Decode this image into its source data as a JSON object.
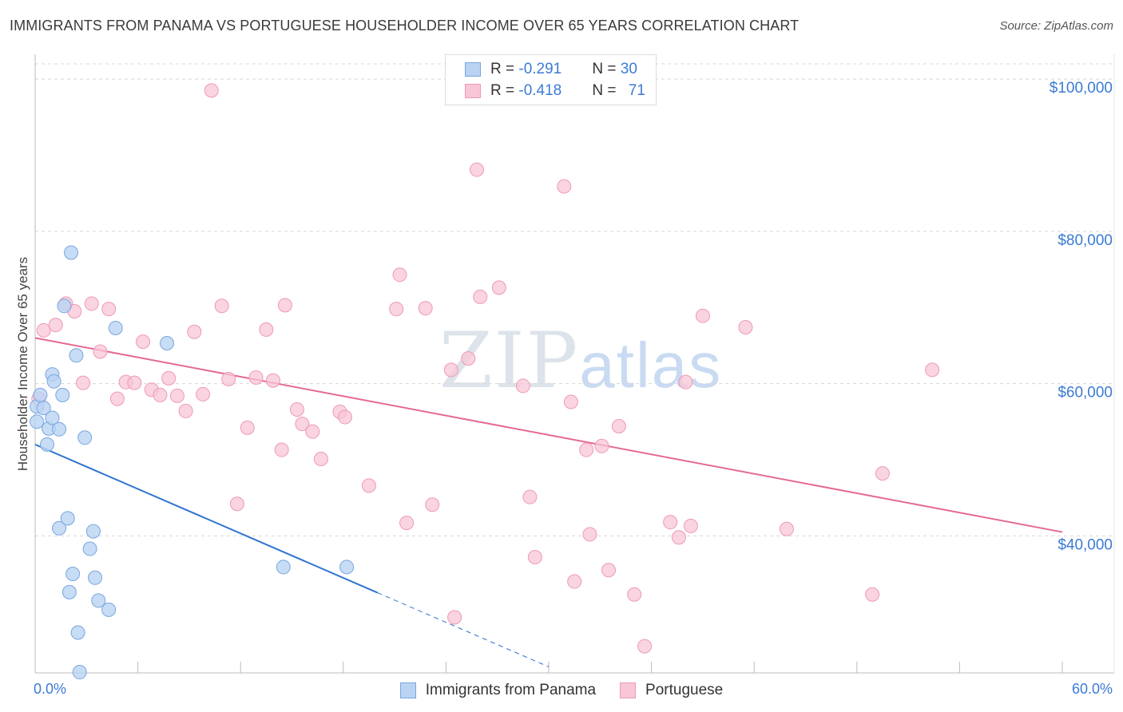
{
  "title": "IMMIGRANTS FROM PANAMA VS PORTUGUESE HOUSEHOLDER INCOME OVER 65 YEARS CORRELATION CHART",
  "source": "Source: ZipAtlas.com",
  "watermark": {
    "zip": "ZIP",
    "atlas": "atlas"
  },
  "colors": {
    "panama_fill": "#b9d3f3",
    "panama_stroke": "#7aa6df",
    "panama_line": "#2e74d0",
    "portuguese_fill": "#f8c6d6",
    "portuguese_stroke": "#ee9ab5",
    "portuguese_line": "#e46a94",
    "accent_text": "#3b7bd4"
  },
  "legend": {
    "rows": [
      {
        "r_label": "R = ",
        "r_value": "-0.291",
        "n_label": "N = ",
        "n_value": "30"
      },
      {
        "r_label": "R = ",
        "r_value": "-0.418",
        "n_label": "N = ",
        "n_value": "71"
      }
    ]
  },
  "bottom_legend": [
    "Immigrants from Panama",
    "Portuguese"
  ],
  "chart_data": {
    "type": "scatter",
    "title": "IMMIGRANTS FROM PANAMA VS PORTUGUESE HOUSEHOLDER INCOME OVER 65 YEARS CORRELATION CHART",
    "ylabel": "Householder Income Over 65 years",
    "xlabel": "",
    "xlim": [
      0,
      60
    ],
    "ylim": [
      22000,
      102000
    ],
    "x_tick_labels": [
      "0.0%",
      "60.0%"
    ],
    "y_ticks": [
      40000,
      60000,
      80000,
      100000
    ],
    "y_tick_labels": [
      "$40,000",
      "$60,000",
      "$80,000",
      "$100,000"
    ],
    "grid": true,
    "legend_position": "top-center",
    "series": [
      {
        "name": "Immigrants from Panama",
        "r": -0.291,
        "n": 30,
        "trend": {
          "x0": 0,
          "y0": 52000,
          "x1": 30,
          "y1": 22800,
          "solid_until_x": 20
        },
        "points": [
          [
            0.1,
            57000
          ],
          [
            0.1,
            55000
          ],
          [
            0.3,
            58500
          ],
          [
            0.5,
            56800
          ],
          [
            0.7,
            52000
          ],
          [
            0.8,
            54100
          ],
          [
            1.0,
            61200
          ],
          [
            1.0,
            55500
          ],
          [
            1.1,
            60300
          ],
          [
            1.4,
            54000
          ],
          [
            1.4,
            41000
          ],
          [
            1.6,
            58500
          ],
          [
            1.7,
            70200
          ],
          [
            1.9,
            42300
          ],
          [
            2.1,
            77200
          ],
          [
            2.2,
            35000
          ],
          [
            2.0,
            32600
          ],
          [
            2.4,
            63700
          ],
          [
            2.5,
            27300
          ],
          [
            2.6,
            22100
          ],
          [
            2.9,
            52900
          ],
          [
            3.2,
            38300
          ],
          [
            3.4,
            40600
          ],
          [
            3.5,
            34500
          ],
          [
            3.7,
            31500
          ],
          [
            4.3,
            30300
          ],
          [
            4.7,
            67300
          ],
          [
            7.7,
            65300
          ],
          [
            14.5,
            35900
          ],
          [
            18.2,
            35900
          ]
        ]
      },
      {
        "name": "Portuguese",
        "r": -0.418,
        "n": 71,
        "trend": {
          "x0": 0,
          "y0": 66000,
          "x1": 60,
          "y1": 40500
        },
        "points": [
          [
            0.2,
            58000
          ],
          [
            0.5,
            67000
          ],
          [
            1.2,
            67700
          ],
          [
            1.8,
            70500
          ],
          [
            2.3,
            69500
          ],
          [
            2.8,
            60100
          ],
          [
            3.3,
            70500
          ],
          [
            3.8,
            64200
          ],
          [
            4.3,
            69800
          ],
          [
            4.8,
            58000
          ],
          [
            5.3,
            60200
          ],
          [
            5.8,
            60100
          ],
          [
            6.3,
            65500
          ],
          [
            6.8,
            59200
          ],
          [
            7.3,
            58500
          ],
          [
            7.8,
            60700
          ],
          [
            8.3,
            58400
          ],
          [
            8.8,
            56400
          ],
          [
            9.3,
            66800
          ],
          [
            9.8,
            58600
          ],
          [
            10.3,
            98500
          ],
          [
            10.9,
            70200
          ],
          [
            11.3,
            60600
          ],
          [
            11.8,
            44200
          ],
          [
            12.4,
            54200
          ],
          [
            12.9,
            60800
          ],
          [
            13.5,
            67100
          ],
          [
            13.9,
            60400
          ],
          [
            14.4,
            51300
          ],
          [
            14.6,
            70300
          ],
          [
            15.3,
            56600
          ],
          [
            15.6,
            54700
          ],
          [
            16.2,
            53700
          ],
          [
            16.7,
            50100
          ],
          [
            17.8,
            56300
          ],
          [
            18.1,
            55600
          ],
          [
            19.5,
            46600
          ],
          [
            21.1,
            69800
          ],
          [
            21.3,
            74300
          ],
          [
            21.7,
            41700
          ],
          [
            22.8,
            69900
          ],
          [
            23.2,
            44100
          ],
          [
            24.3,
            61800
          ],
          [
            24.5,
            29300
          ],
          [
            25.3,
            63300
          ],
          [
            25.8,
            88100
          ],
          [
            26.0,
            71400
          ],
          [
            27.1,
            72600
          ],
          [
            28.5,
            59700
          ],
          [
            28.9,
            45100
          ],
          [
            29.2,
            37200
          ],
          [
            30.9,
            85900
          ],
          [
            31.3,
            57600
          ],
          [
            31.5,
            34000
          ],
          [
            32.2,
            51300
          ],
          [
            32.4,
            40200
          ],
          [
            33.1,
            51800
          ],
          [
            33.5,
            35500
          ],
          [
            34.1,
            54400
          ],
          [
            35.0,
            32300
          ],
          [
            35.6,
            25500
          ],
          [
            37.1,
            41800
          ],
          [
            37.6,
            39800
          ],
          [
            38.0,
            60200
          ],
          [
            38.3,
            41300
          ],
          [
            39.0,
            68900
          ],
          [
            41.5,
            67400
          ],
          [
            43.9,
            40900
          ],
          [
            48.9,
            32300
          ],
          [
            49.5,
            48200
          ],
          [
            52.4,
            61800
          ]
        ]
      }
    ]
  }
}
